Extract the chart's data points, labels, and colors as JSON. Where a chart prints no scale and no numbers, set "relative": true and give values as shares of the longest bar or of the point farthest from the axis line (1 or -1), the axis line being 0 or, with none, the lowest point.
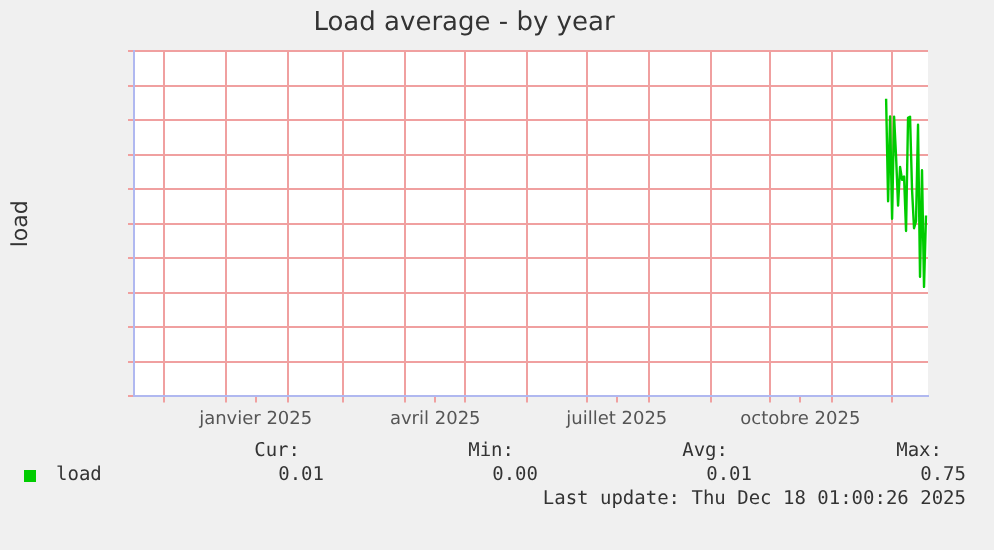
{
  "chart_data": {
    "type": "line",
    "title": "Load average - by year",
    "ylabel": "load",
    "relative": true,
    "x": [
      "2025-11-28",
      "2025-11-29",
      "2025-11-30",
      "2025-12-01",
      "2025-12-02",
      "2025-12-03",
      "2025-12-04",
      "2025-12-05",
      "2025-12-06",
      "2025-12-07",
      "2025-12-08",
      "2025-12-09",
      "2025-12-10",
      "2025-12-11",
      "2025-12-12",
      "2025-12-13",
      "2025-12-14",
      "2025-12-15",
      "2025-12-16",
      "2025-12-17",
      "2025-12-18"
    ],
    "series": [
      {
        "name": "load",
        "color": "#00cc00",
        "values": [
          1,
          0.656,
          0.941,
          0.597,
          0.94,
          0.805,
          0.641,
          0.771,
          0.728,
          0.739,
          0.556,
          0.936,
          0.94,
          0.695,
          0.565,
          0.589,
          0.913,
          0.402,
          0.76,
          0.368,
          0.608
        ]
      }
    ],
    "xlim": [
      "2024-11-16",
      "2025-12-19"
    ],
    "xticks": [
      {
        "value": "2024-12-01",
        "label": null
      },
      {
        "value": "2025-01-01",
        "label": null
      },
      {
        "value": "2025-01-16",
        "label": "janvier 2025"
      },
      {
        "value": "2025-02-01",
        "label": null
      },
      {
        "value": "2025-03-01",
        "label": null
      },
      {
        "value": "2025-04-01",
        "label": null
      },
      {
        "value": "2025-04-16",
        "label": "avril 2025"
      },
      {
        "value": "2025-05-01",
        "label": null
      },
      {
        "value": "2025-06-01",
        "label": null
      },
      {
        "value": "2025-07-01",
        "label": null
      },
      {
        "value": "2025-07-16",
        "label": "juillet 2025"
      },
      {
        "value": "2025-08-01",
        "label": null
      },
      {
        "value": "2025-09-01",
        "label": null
      },
      {
        "value": "2025-10-01",
        "label": null
      },
      {
        "value": "2025-10-16",
        "label": "octobre 2025"
      },
      {
        "value": "2025-11-01",
        "label": null
      },
      {
        "value": "2025-12-01",
        "label": null
      }
    ],
    "grid": true,
    "legend": "bottom left",
    "annotations": [
      "Cur:",
      "Min:",
      "Avg:",
      "Max:",
      "0.01",
      "0.00",
      "0.01",
      "0.75",
      "Last update: Thu Dec 18 01:00:26 2025"
    ]
  }
}
